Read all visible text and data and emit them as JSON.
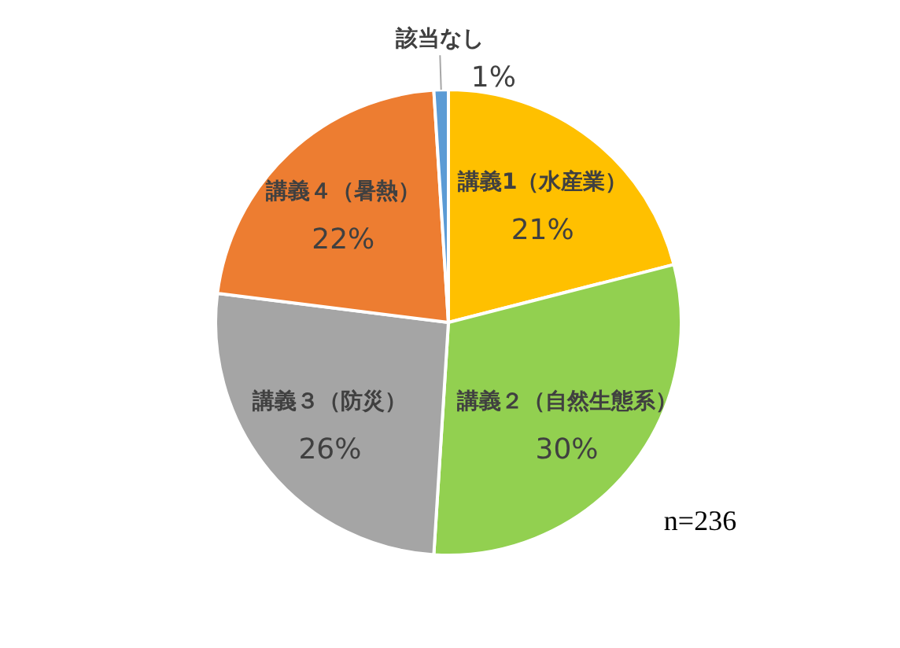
{
  "chart_data": {
    "type": "pie",
    "categories": [
      "講義1（水産業）",
      "講義２（自然生態系）",
      "講義３（防災）",
      "講義４（暑熱）",
      "該当なし"
    ],
    "values": [
      21,
      30,
      26,
      22,
      1
    ],
    "value_labels": [
      "21%",
      "30%",
      "26%",
      "22%",
      "1%"
    ],
    "colors": [
      "#ffc000",
      "#92d050",
      "#a5a5a5",
      "#ed7d31",
      "#5b9bd5"
    ],
    "annotations": [
      "n=236"
    ]
  }
}
